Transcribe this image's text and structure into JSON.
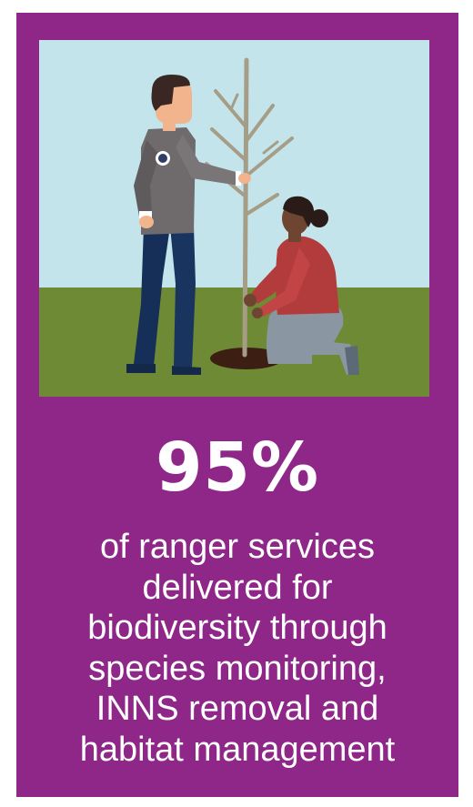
{
  "colors": {
    "card_background": "#8e2788",
    "sky": "#c4e4ec",
    "grass": "#6e8a35",
    "text": "#ffffff"
  },
  "illustration": {
    "subject_icons": [
      "ranger-figure",
      "kneeling-volunteer-figure",
      "sapling-tree",
      "soil-hole"
    ]
  },
  "stat": {
    "value": "95%",
    "description_lines": [
      "of ranger services",
      "delivered for",
      "biodiversity through",
      "species monitoring,",
      "INNS removal and",
      "habitat management"
    ]
  }
}
